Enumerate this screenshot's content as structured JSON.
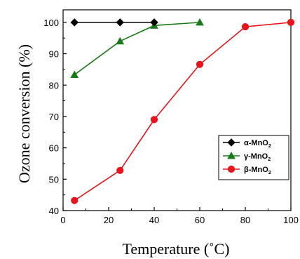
{
  "chart_data": {
    "type": "line",
    "xlabel": "Temperature (˚C)",
    "ylabel": "Ozone conversion (%)",
    "xlim": [
      0,
      100
    ],
    "ylim": [
      40,
      104
    ],
    "xticks": [
      0,
      20,
      40,
      60,
      80,
      100
    ],
    "yticks": [
      40,
      50,
      60,
      70,
      80,
      90,
      100
    ],
    "grid": false,
    "legend_position": "bottom-right",
    "series": [
      {
        "name": "α-MnO",
        "name_sub": "2",
        "color": "#000000",
        "marker": "diamond",
        "x": [
          5,
          25,
          40
        ],
        "y": [
          100,
          100,
          100
        ]
      },
      {
        "name": "γ-MnO",
        "name_sub": "2",
        "color": "#1a7a1a",
        "marker": "triangle",
        "x": [
          5,
          25,
          40,
          60
        ],
        "y": [
          83.3,
          94.0,
          99.0,
          100
        ]
      },
      {
        "name": "β-MnO",
        "name_sub": "2",
        "color": "#e8141c",
        "marker": "circle",
        "x": [
          5,
          25,
          40,
          60,
          80,
          100
        ],
        "y": [
          43.2,
          52.8,
          69.0,
          86.6,
          98.6,
          100
        ]
      }
    ]
  }
}
